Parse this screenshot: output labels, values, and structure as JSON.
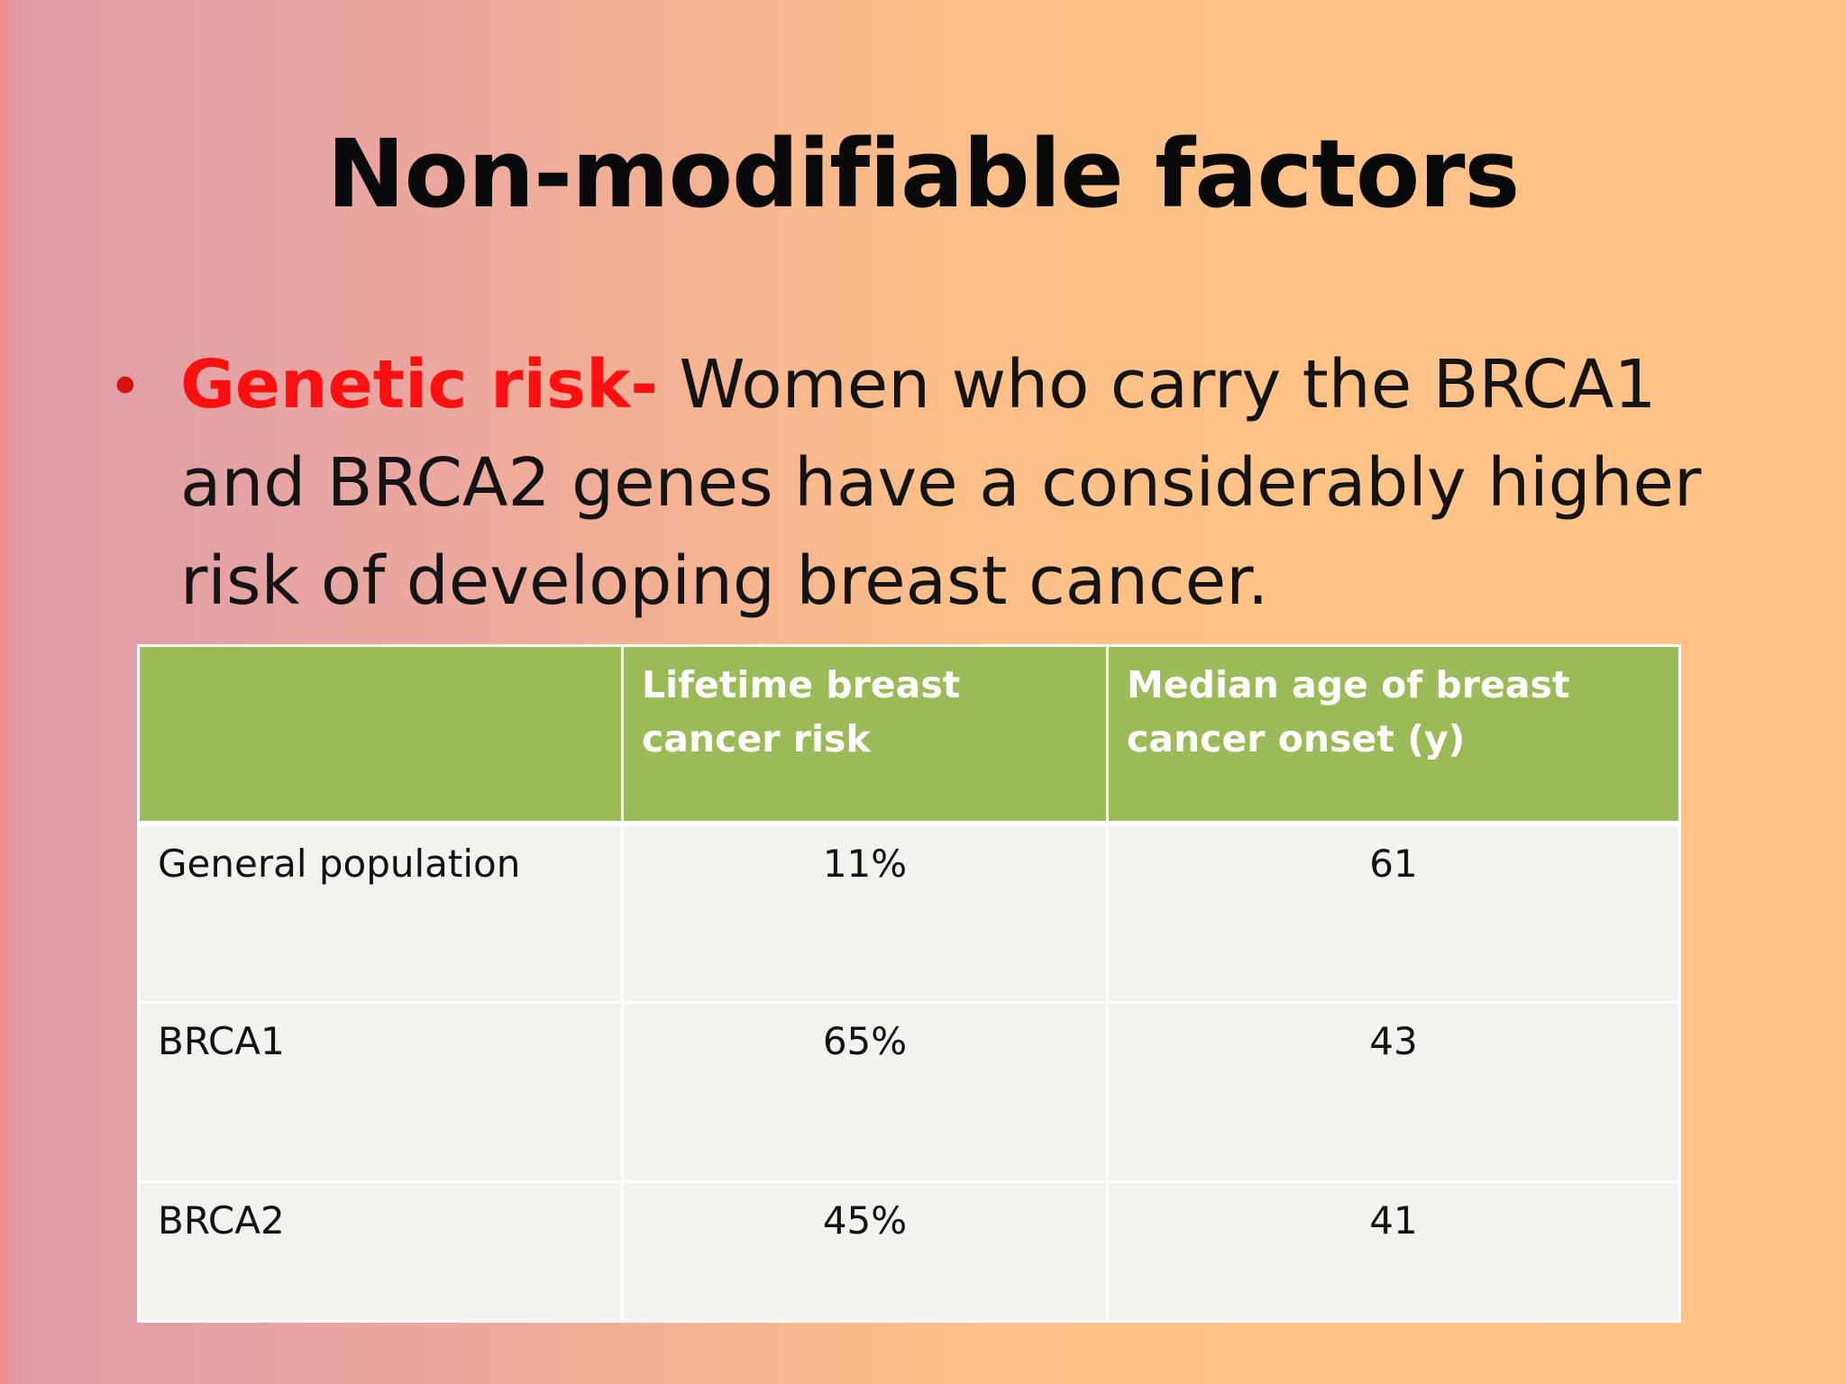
{
  "slide": {
    "title": "Non-modifiable factors",
    "bullet": {
      "highlight": "Genetic risk-",
      "lines": [
        "Women who carry the BRCA1",
        "and BRCA2  genes have a considerably higher",
        "risk of developing breast cancer."
      ]
    },
    "colors": {
      "highlight": "#ff1010",
      "table_header": "#9bbb59",
      "table_cell": "#f2f2ee"
    }
  },
  "table": {
    "headers": [
      "",
      "Lifetime breast cancer risk",
      "Median age of breast cancer onset (y)"
    ],
    "rows": [
      [
        "General population",
        "11%",
        "61"
      ],
      [
        "BRCA1",
        "65%",
        "43"
      ],
      [
        "BRCA2",
        "45%",
        "41"
      ]
    ]
  }
}
